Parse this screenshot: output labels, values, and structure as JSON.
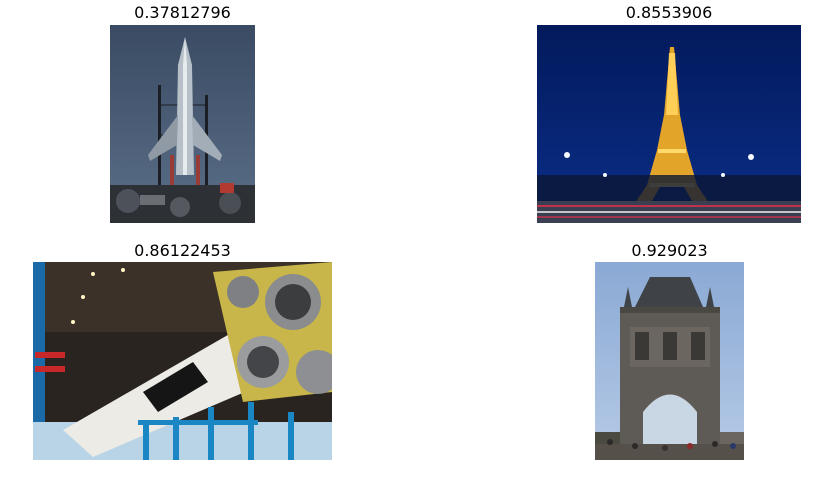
{
  "panels": [
    {
      "score": "0.37812796",
      "subject": "retro-rocket-illustration"
    },
    {
      "score": "0.8553906",
      "subject": "eiffel-tower-at-night"
    },
    {
      "score": "0.86122453",
      "subject": "saturn-v-rocket-in-hall"
    },
    {
      "score": "0.929023",
      "subject": "old-town-bridge-tower"
    }
  ]
}
